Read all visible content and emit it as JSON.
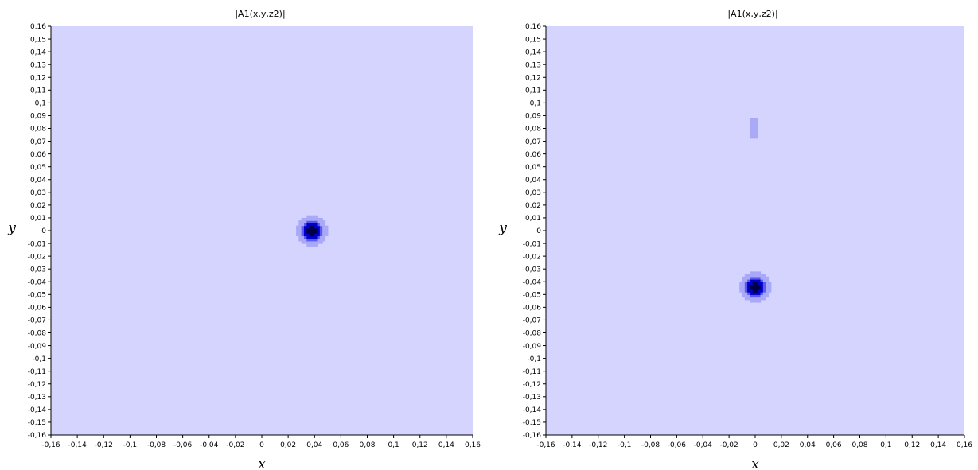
{
  "chart_data": [
    {
      "type": "heatmap",
      "title": "|A1(x,y,z2)|",
      "xlabel": "x",
      "ylabel": "y",
      "xlim": [
        -0.16,
        0.16
      ],
      "ylim": [
        -0.16,
        0.16
      ],
      "x_ticks": [
        "-0,16",
        "-0,14",
        "-0,12",
        "-0,1",
        "-0,08",
        "-0,06",
        "-0,04",
        "-0,02",
        "0",
        "0,02",
        "0,04",
        "0,06",
        "0,08",
        "0,1",
        "0,12",
        "0,14",
        "0,16"
      ],
      "y_ticks": [
        "0,16",
        "0,15",
        "0,14",
        "0,13",
        "0,12",
        "0,11",
        "0,1",
        "0,09",
        "0,08",
        "0,07",
        "0,06",
        "0,05",
        "0,04",
        "0,03",
        "0,02",
        "0,01",
        "0",
        "-0,01",
        "-0,02",
        "-0,03",
        "-0,04",
        "-0,05",
        "-0,06",
        "-0,07",
        "-0,08",
        "-0,09",
        "-0,1",
        "-0,11",
        "-0,12",
        "-0,13",
        "-0,14",
        "-0,15",
        "-0,16"
      ],
      "grid": false,
      "colors": {
        "background": "#d4d4ff",
        "level_1": "#a9a9f8",
        "level_2": "#5a5af0",
        "level_3": "#0000c8",
        "level_4": "#000046"
      },
      "spots": [
        {
          "x": 0.038,
          "y": 0.0,
          "amplitude": 1.0
        }
      ]
    },
    {
      "type": "heatmap",
      "title": "|A1(x,y,z2)|",
      "xlabel": "x",
      "ylabel": "y",
      "xlim": [
        -0.16,
        0.16
      ],
      "ylim": [
        -0.16,
        0.16
      ],
      "x_ticks": [
        "-0,16",
        "-0,14",
        "-0,12",
        "-0,1",
        "-0,08",
        "-0,06",
        "-0,04",
        "-0,02",
        "0",
        "0,02",
        "0,04",
        "0,06",
        "0,08",
        "0,1",
        "0,12",
        "0,14",
        "0,16"
      ],
      "y_ticks": [
        "0,16",
        "0,15",
        "0,14",
        "0,13",
        "0,12",
        "0,11",
        "0,1",
        "0,09",
        "0,08",
        "0,07",
        "0,06",
        "0,05",
        "0,04",
        "0,03",
        "0,02",
        "0,01",
        "0",
        "-0,01",
        "-0,02",
        "-0,03",
        "-0,04",
        "-0,05",
        "-0,06",
        "-0,07",
        "-0,08",
        "-0,09",
        "-0,1",
        "-0,11",
        "-0,12",
        "-0,13",
        "-0,14",
        "-0,15",
        "-0,16"
      ],
      "grid": false,
      "colors": {
        "background": "#d4d4ff",
        "level_1": "#a9a9f8",
        "level_2": "#5a5af0",
        "level_3": "#0000c8",
        "level_4": "#000046"
      },
      "spots": [
        {
          "x": 0.0,
          "y": -0.044,
          "amplitude": 1.0
        }
      ],
      "faint_regions": [
        {
          "x_range": [
            -0.004,
            0.002
          ],
          "y_range": [
            0.072,
            0.088
          ]
        }
      ]
    }
  ]
}
